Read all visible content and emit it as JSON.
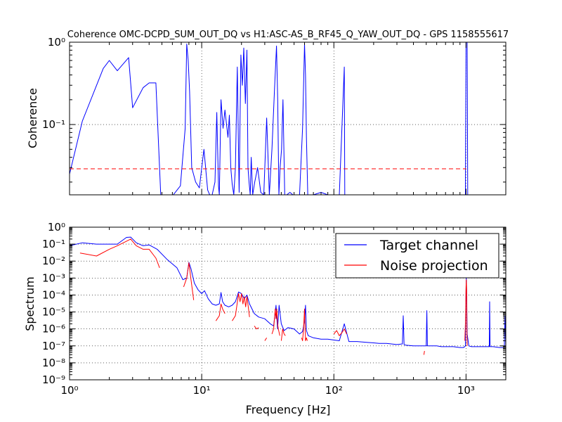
{
  "chart_data": [
    {
      "type": "line",
      "title": "Coherence OMC-DCPD_SUM_OUT_DQ vs H1:ASC-AS_B_RF45_Q_YAW_OUT_DQ - GPS 1158555617",
      "xlabel": "",
      "ylabel": "Coherence",
      "xscale": "log",
      "yscale": "log",
      "xlim": [
        1,
        2000
      ],
      "ylim": [
        0.014,
        1
      ],
      "grid": true,
      "y_tick_labels": [
        "10^-1",
        "10^0"
      ],
      "series": [
        {
          "color": "#0000ff",
          "x": [
            1,
            1.25,
            1.8,
            2,
            2.3,
            2.8,
            3.0,
            3.6,
            4.0,
            4.5,
            4.9,
            6.1,
            6.9,
            7.5,
            7.7,
            7.9,
            8.1,
            8.4,
            9.0,
            9.6,
            10.4,
            11.1,
            11.5,
            12.0,
            12.6,
            13.0,
            13.4,
            13.6,
            14.0,
            14.5,
            15.0,
            15.8,
            16.2,
            16.6,
            17.0,
            17.5,
            18.0,
            18.6,
            19.2,
            19.8,
            20.3,
            20.8,
            21.4,
            22.0,
            22.4,
            22.8,
            23.3,
            23.7,
            24.3,
            25.2,
            26.5,
            28.0,
            29.5,
            31.0,
            32.5,
            34.0,
            35.5,
            36.8,
            37.6,
            38.4,
            39.2,
            40.2,
            41.2,
            42.5,
            44.0,
            46.5,
            49.0,
            52.0,
            55.0,
            58.0,
            60.0,
            61.0,
            62.0,
            63.5,
            66.0,
            70.0,
            80.0,
            90.0,
            110.0,
            120.0,
            121.0,
            122.0,
            140.0,
            160.0,
            180.0,
            200.0,
            250.0,
            300.0,
            330.0,
            340.0,
            400.0,
            450.0,
            480.0,
            500.0,
            505.0,
            520.0,
            600.0,
            700.0,
            800.0,
            900.0,
            960.0,
            990.0,
            1000.0,
            1005.0,
            1010.0,
            1020.0,
            1030.0,
            1100.0,
            1300.0,
            1500.0,
            2000.0
          ],
          "y": [
            0.025,
            0.11,
            0.48,
            0.6,
            0.45,
            0.65,
            0.16,
            0.28,
            0.32,
            0.32,
            0.014,
            0.014,
            0.018,
            0.09,
            0.95,
            0.6,
            0.25,
            0.03,
            0.02,
            0.017,
            0.05,
            0.016,
            0.014,
            0.014,
            0.02,
            0.14,
            0.018,
            0.014,
            0.2,
            0.09,
            0.15,
            0.07,
            0.13,
            0.03,
            0.019,
            0.014,
            0.03,
            0.5,
            0.015,
            0.7,
            0.3,
            0.85,
            0.18,
            0.8,
            0.03,
            0.02,
            0.014,
            0.04,
            0.014,
            0.02,
            0.03,
            0.015,
            0.014,
            0.12,
            0.014,
            0.05,
            0.25,
            0.9,
            0.2,
            0.014,
            0.03,
            0.05,
            0.2,
            0.014,
            0.014,
            0.015,
            0.014,
            0.014,
            0.014,
            0.09,
            0.95,
            0.4,
            0.07,
            0.014,
            0.014,
            0.014,
            0.015,
            0.014,
            0.014,
            0.5,
            0.014,
            0.014,
            0.014,
            0.014,
            0.014,
            0.014,
            0.014,
            0.014,
            0.014,
            0.014,
            0.014,
            0.014,
            0.014,
            0.014,
            0.014,
            0.014,
            0.014,
            0.014,
            0.014,
            0.014,
            0.014,
            0.014,
            1.0,
            1.0,
            1.0,
            1.0,
            0.014,
            0.014,
            0.014,
            0.014,
            0.014
          ]
        },
        {
          "color": "#ff0000",
          "style": "dashed",
          "x": [
            1,
            1000
          ],
          "y": [
            0.029,
            0.029
          ]
        }
      ]
    },
    {
      "type": "line",
      "title": "",
      "xlabel": "Frequency [Hz]",
      "ylabel": "Spectrum",
      "xscale": "log",
      "yscale": "log",
      "xlim": [
        1,
        2000
      ],
      "ylim": [
        1e-09,
        1
      ],
      "grid": true,
      "legend_position": "top-right",
      "x_tick_labels": [
        "10^0",
        "10^1",
        "10^2",
        "10^3"
      ],
      "y_tick_labels": [
        "10^-9",
        "10^-8",
        "10^-7",
        "10^-6",
        "10^-5",
        "10^-4",
        "10^-3",
        "10^-2",
        "10^-1",
        "10^0"
      ],
      "series": [
        {
          "name": "Target channel",
          "color": "#0000ff",
          "x": [
            1,
            1.25,
            1.6,
            2,
            2.3,
            2.7,
            2.9,
            3.2,
            3.6,
            4.0,
            4.6,
            5.5,
            6.5,
            7.2,
            7.7,
            8.0,
            8.3,
            8.8,
            9.4,
            10,
            10.5,
            11.2,
            12,
            12.8,
            13.6,
            14.0,
            14.4,
            15,
            16,
            17,
            18,
            19,
            20,
            21,
            22,
            23,
            25,
            27,
            30,
            33,
            35,
            36.5,
            37.5,
            38.5,
            40,
            42,
            45,
            50,
            55,
            58,
            60,
            61,
            62,
            64,
            70,
            80,
            90,
            110,
            120,
            130,
            150,
            180,
            200,
            220,
            250,
            300,
            330,
            335,
            340,
            350,
            400,
            450,
            500,
            505,
            510,
            550,
            600,
            650,
            700,
            800,
            900,
            960,
            990,
            1000,
            1005,
            1010,
            1020,
            1050,
            1100,
            1200,
            1300,
            1400,
            1500,
            1510,
            1520,
            1600,
            1800,
            1950,
            1970,
            2000
          ],
          "y": [
            0.08,
            0.12,
            0.1,
            0.1,
            0.1,
            0.25,
            0.26,
            0.12,
            0.08,
            0.09,
            0.05,
            0.012,
            0.004,
            0.0008,
            0.001,
            0.0085,
            0.0035,
            0.0005,
            0.0002,
            0.00012,
            0.00018,
            6e-05,
            3e-05,
            2.5e-05,
            3e-05,
            0.00014,
            4e-05,
            2.5e-05,
            2e-05,
            2.5e-05,
            4e-05,
            0.00015,
            0.00012,
            6e-05,
            0.0001,
            3e-05,
            8e-06,
            5e-06,
            4e-06,
            2e-06,
            1.5e-06,
            2.5e-05,
            1e-06,
            2.5e-05,
            2e-06,
            8e-07,
            1.2e-06,
            1e-06,
            5e-07,
            7e-07,
            3e-06,
            2.5e-05,
            8e-07,
            4e-07,
            3e-07,
            2.5e-07,
            2.5e-07,
            2e-07,
            2e-06,
            1.8e-07,
            1.8e-07,
            1.6e-07,
            1.5e-07,
            1.4e-07,
            1.4e-07,
            1.2e-07,
            1.3e-07,
            6e-06,
            1.2e-07,
            1.1e-07,
            1e-07,
            1e-07,
            1e-07,
            1.2e-05,
            1e-07,
            1e-07,
            1e-07,
            9e-08,
            9e-08,
            9e-08,
            8e-08,
            8e-08,
            1e-07,
            0.0002,
            0.001,
            0.0002,
            5e-07,
            1e-07,
            9e-08,
            9e-08,
            9e-08,
            9e-08,
            9e-08,
            4e-05,
            9e-08,
            9e-08,
            8e-08,
            8e-08,
            6e-06,
            8e-08
          ]
        },
        {
          "name": "Noise projection",
          "color": "#ff0000",
          "x": [
            1.2,
            1.6,
            2,
            2.3,
            2.7,
            2.9,
            3.2,
            3.6,
            4.0,
            4.5,
            4.8,
            null,
            7.3,
            7.7,
            8.0,
            8.3,
            8.7,
            null,
            12.8,
            13.6,
            14.0,
            14.4,
            15,
            null,
            17,
            18,
            19,
            19.5,
            20,
            20.5,
            21,
            21.5,
            22,
            22.5,
            23,
            null,
            25,
            26,
            27,
            null,
            30,
            31,
            null,
            34,
            35,
            36,
            36.5,
            37,
            37.5,
            38,
            39,
            null,
            40,
            41,
            42,
            43,
            null,
            57,
            58,
            59,
            60,
            61,
            62,
            63,
            null,
            100,
            105,
            110,
            115,
            120,
            125,
            null,
            480,
            485,
            null,
            980,
            990,
            1000,
            1005,
            1010,
            1015,
            1020
          ],
          "y": [
            0.03,
            0.02,
            0.05,
            0.08,
            0.15,
            0.2,
            0.08,
            0.05,
            0.05,
            0.015,
            0.004,
            null,
            0.0003,
            0.001,
            0.008,
            0.0008,
            5e-05,
            null,
            3e-06,
            6e-06,
            3e-05,
            1.5e-05,
            8e-06,
            null,
            3e-06,
            6e-06,
            0.00012,
            4e-05,
            0.00012,
            3e-05,
            8e-05,
            2e-05,
            8e-05,
            2e-05,
            5e-06,
            null,
            1.5e-06,
            1e-06,
            1.2e-06,
            null,
            2e-07,
            3e-07,
            null,
            5e-07,
            1e-06,
            1.5e-05,
            4e-06,
            1.5e-05,
            2e-06,
            1e-06,
            4e-07,
            null,
            2e-07,
            1e-06,
            5e-07,
            4e-07,
            null,
            3e-07,
            2e-07,
            1e-06,
            1.5e-05,
            2e-07,
            3e-07,
            2e-07,
            null,
            5e-07,
            8e-07,
            4e-07,
            6e-07,
            1e-06,
            5e-07,
            null,
            3e-08,
            5e-08,
            null,
            2e-07,
            2e-06,
            0.0003,
            0.0008,
            0.0002,
            1e-06,
            1e-07
          ]
        }
      ]
    }
  ]
}
